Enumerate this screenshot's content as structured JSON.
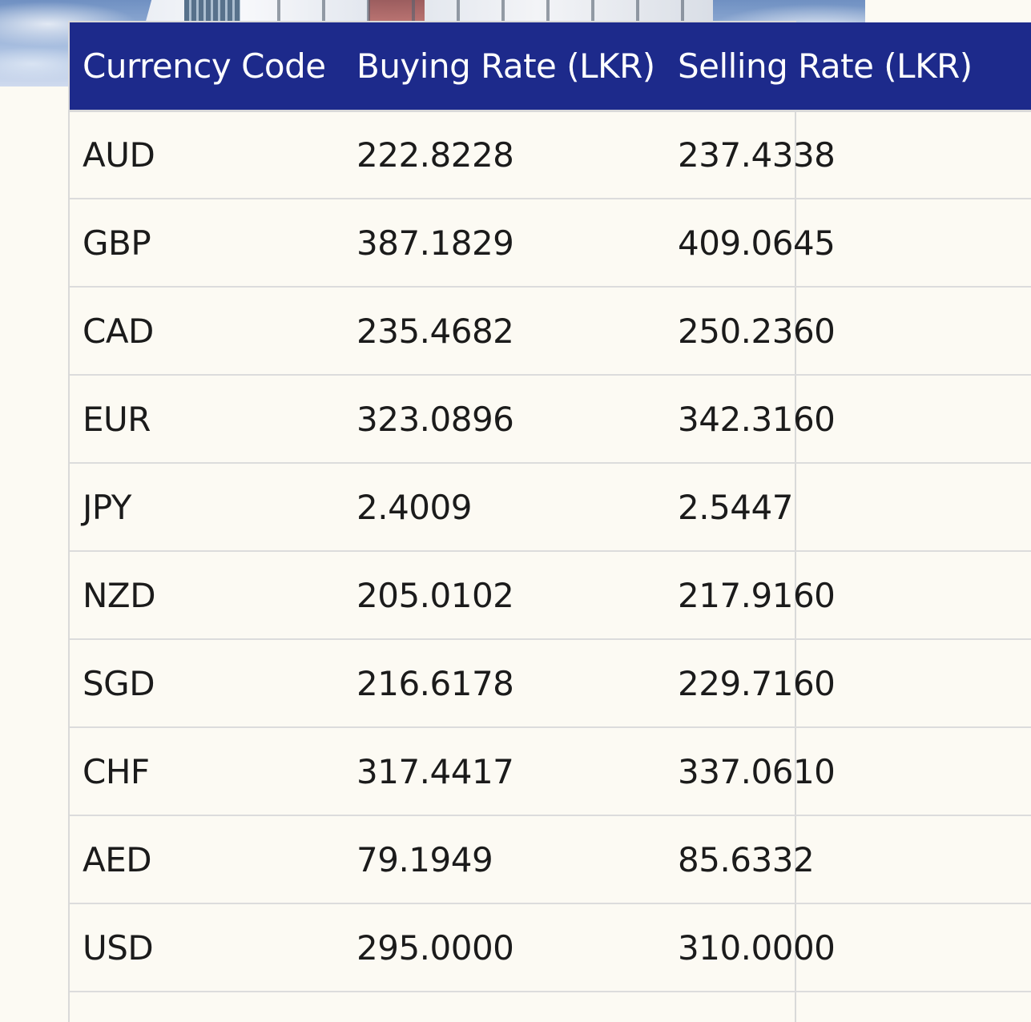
{
  "table": {
    "headers": {
      "currency_code": "Currency Code",
      "buying_rate": "Buying Rate (LKR)",
      "selling_rate": "Selling Rate (LKR)"
    },
    "rows": [
      {
        "code": "AUD",
        "buying": "222.8228",
        "selling": "237.4338"
      },
      {
        "code": "GBP",
        "buying": "387.1829",
        "selling": "409.0645"
      },
      {
        "code": "CAD",
        "buying": "235.4682",
        "selling": "250.2360"
      },
      {
        "code": "EUR",
        "buying": "323.0896",
        "selling": "342.3160"
      },
      {
        "code": "JPY",
        "buying": "2.4009",
        "selling": "2.5447"
      },
      {
        "code": "NZD",
        "buying": "205.0102",
        "selling": "217.9160"
      },
      {
        "code": "SGD",
        "buying": "216.6178",
        "selling": "229.7160"
      },
      {
        "code": "CHF",
        "buying": "317.4417",
        "selling": "337.0610"
      },
      {
        "code": "AED",
        "buying": "79.1949",
        "selling": "85.6332"
      },
      {
        "code": "USD",
        "buying": "295.0000",
        "selling": "310.0000"
      }
    ]
  },
  "colors": {
    "header_bg": "#1d2a8b",
    "header_text": "#ffffff",
    "page_bg": "#fcfaf3",
    "row_border": "#dcdcdc"
  }
}
